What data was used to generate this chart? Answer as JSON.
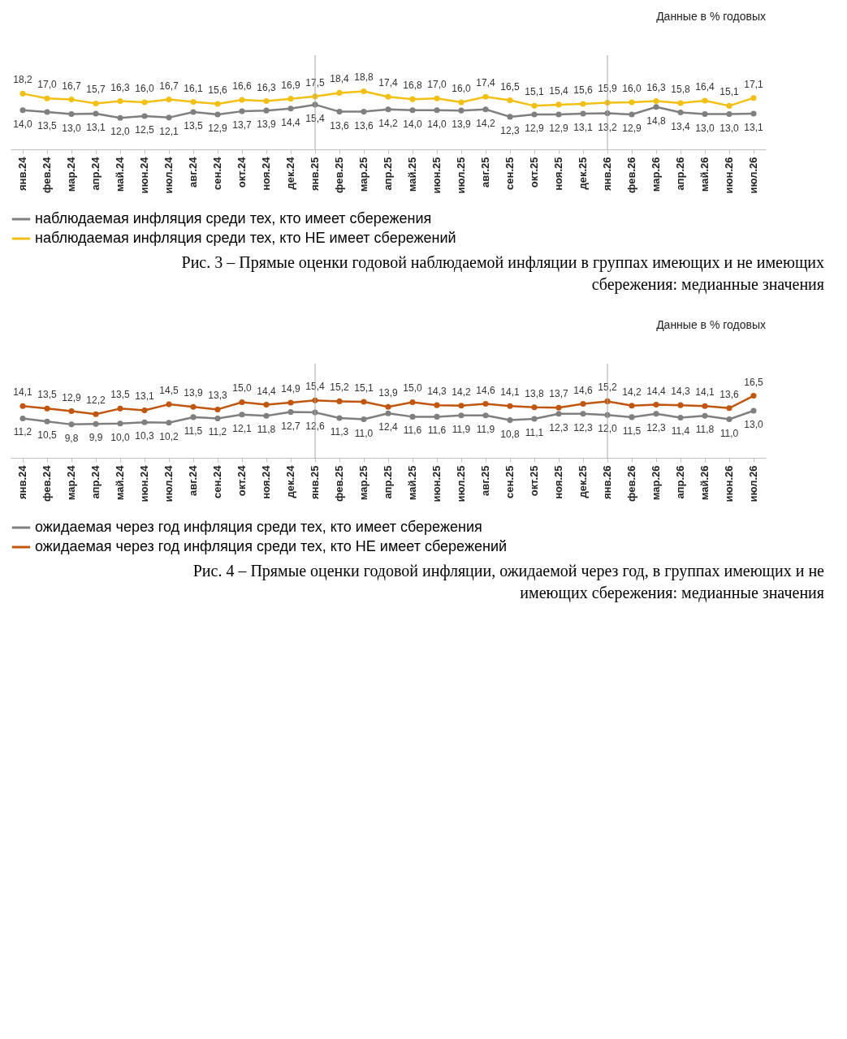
{
  "chart_data": [
    {
      "type": "line",
      "subtitle": "Данные в % годовых",
      "categories": [
        "янв.24",
        "фев.24",
        "мар.24",
        "апр.24",
        "май.24",
        "июн.24",
        "июл.24",
        "авг.24",
        "сен.24",
        "окт.24",
        "ноя.24",
        "дек.24",
        "янв.25",
        "фев.25",
        "мар.25",
        "апр.25",
        "май.25",
        "июн.25",
        "июл.25",
        "авг.25",
        "сен.25",
        "окт.25",
        "ноя.25",
        "дек.25",
        "янв.26",
        "фев.26",
        "мар.26",
        "апр.26",
        "май.26",
        "июн.26",
        "июл.26"
      ],
      "series": [
        {
          "name": "наблюдаемая инфляция  среди тех, кто имеет сбережения",
          "color": "#7f7f7f",
          "values": [
            14.0,
            13.5,
            13.0,
            13.1,
            12.0,
            12.5,
            12.1,
            13.5,
            12.9,
            13.7,
            13.9,
            14.4,
            15.4,
            13.6,
            13.6,
            14.2,
            14.0,
            14.0,
            13.9,
            14.2,
            12.3,
            12.9,
            12.9,
            13.1,
            13.2,
            12.9,
            14.8,
            13.4,
            13.0,
            13.0,
            13.1
          ],
          "value_labels": [
            "14,0",
            "13,5",
            "13,0",
            "13,1",
            "12,0",
            "12,5",
            "12,1",
            "13,5",
            "12,9",
            "13,7",
            "13,9",
            "14,4",
            "15,4",
            "13,6",
            "13,6",
            "14,2",
            "14,0",
            "14,0",
            "13,9",
            "14,2",
            "12,3",
            "12,9",
            "12,9",
            "13,1",
            "13,2",
            "12,9",
            "14,8",
            "13,4",
            "13,0",
            "13,0",
            "13,1"
          ]
        },
        {
          "name": "наблюдаемая инфляция  среди тех, кто НЕ имеет сбережений",
          "color": "#f2c014",
          "values": [
            18.2,
            17.0,
            16.7,
            15.7,
            16.3,
            16.0,
            16.7,
            16.1,
            15.6,
            16.6,
            16.3,
            16.9,
            17.5,
            18.4,
            18.8,
            17.4,
            16.8,
            17.0,
            16.0,
            17.4,
            16.5,
            15.1,
            15.4,
            15.6,
            15.9,
            16.0,
            16.3,
            15.8,
            16.4,
            15.1,
            17.1
          ],
          "value_labels": [
            "18,2",
            "17,0",
            "16,7",
            "15,7",
            "16,3",
            "16,0",
            "16,7",
            "16,1",
            "15,6",
            "16,6",
            "16,3",
            "16,9",
            "17,5",
            "18,4",
            "18,8",
            "17,4",
            "16,8",
            "17,0",
            "16,0",
            "17,4",
            "16,5",
            "15,1",
            "15,4",
            "15,6",
            "15,9",
            "16,0",
            "16,3",
            "15,8",
            "16,4",
            "15,1",
            "17,1"
          ]
        }
      ],
      "tick_labels": "x",
      "marker": "circle",
      "legend": "bottom",
      "ref_lines": [
        {
          "axis": "x",
          "value": "янв.25",
          "color": "#a6a6a6"
        },
        {
          "axis": "x",
          "value": "янв.26",
          "color": "#a6a6a6"
        }
      ],
      "annotations": [
        "Рис. 3 – Прямые оценки годовой наблюдаемой инфляции в группах имеющих и не имеющих сбережения: медианные значения"
      ]
    },
    {
      "type": "line",
      "subtitle": "Данные в % годовых",
      "categories": [
        "янв.24",
        "фев.24",
        "мар.24",
        "апр.24",
        "май.24",
        "июн.24",
        "июл.24",
        "авг.24",
        "сен.24",
        "окт.24",
        "ноя.24",
        "дек.24",
        "янв.25",
        "фев.25",
        "мар.25",
        "апр.25",
        "май.25",
        "июн.25",
        "июл.25",
        "авг.25",
        "сен.25",
        "окт.25",
        "ноя.25",
        "дек.25",
        "янв.26",
        "фев.26",
        "мар.26",
        "апр.26",
        "май.26",
        "июн.26",
        "июл.26"
      ],
      "series": [
        {
          "name": "ожидаемая через год инфляция  среди тех, кто имеет сбережения",
          "color": "#7f7f7f",
          "values": [
            11.2,
            10.5,
            9.8,
            9.9,
            10.0,
            10.3,
            10.2,
            11.5,
            11.2,
            12.1,
            11.8,
            12.7,
            12.6,
            11.3,
            11.0,
            12.4,
            11.6,
            11.6,
            11.9,
            11.9,
            10.8,
            11.1,
            12.3,
            12.3,
            12.0,
            11.5,
            12.3,
            11.4,
            11.8,
            11.0,
            13.0
          ],
          "value_labels": [
            "11,2",
            "10,5",
            "9,8",
            "9,9",
            "10,0",
            "10,3",
            "10,2",
            "11,5",
            "11,2",
            "12,1",
            "11,8",
            "12,7",
            "12,6",
            "11,3",
            "11,0",
            "12,4",
            "11,6",
            "11,6",
            "11,9",
            "11,9",
            "10,8",
            "11,1",
            "12,3",
            "12,3",
            "12,0",
            "11,5",
            "12,3",
            "11,4",
            "11,8",
            "11,0",
            "13,0"
          ]
        },
        {
          "name": "ожидаемая через год инфляция  среди тех, кто НЕ имеет сбережений",
          "color": "#c0560f",
          "values": [
            14.1,
            13.5,
            12.9,
            12.2,
            13.5,
            13.1,
            14.5,
            13.9,
            13.3,
            15.0,
            14.4,
            14.9,
            15.4,
            15.2,
            15.1,
            13.9,
            15.0,
            14.3,
            14.2,
            14.6,
            14.1,
            13.8,
            13.7,
            14.6,
            15.2,
            14.2,
            14.4,
            14.3,
            14.1,
            13.6,
            16.5
          ],
          "value_labels": [
            "14,1",
            "13,5",
            "12,9",
            "12,2",
            "13,5",
            "13,1",
            "14,5",
            "13,9",
            "13,3",
            "15,0",
            "14,4",
            "14,9",
            "15,4",
            "15,2",
            "15,1",
            "13,9",
            "15,0",
            "14,3",
            "14,2",
            "14,6",
            "14,1",
            "13,8",
            "13,7",
            "14,6",
            "15,2",
            "14,2",
            "14,4",
            "14,3",
            "14,1",
            "13,6",
            "16,5"
          ]
        }
      ],
      "tick_labels": "x",
      "marker": "circle",
      "legend": "bottom",
      "ref_lines": [
        {
          "axis": "x",
          "value": "янв.25",
          "color": "#a6a6a6"
        },
        {
          "axis": "x",
          "value": "янв.26",
          "color": "#a6a6a6"
        }
      ],
      "annotations": [
        "Рис. 4 – Прямые оценки годовой инфляции, ожидаемой через год, в группах имеющих и не имеющих сбережения: медианные значения"
      ]
    }
  ]
}
